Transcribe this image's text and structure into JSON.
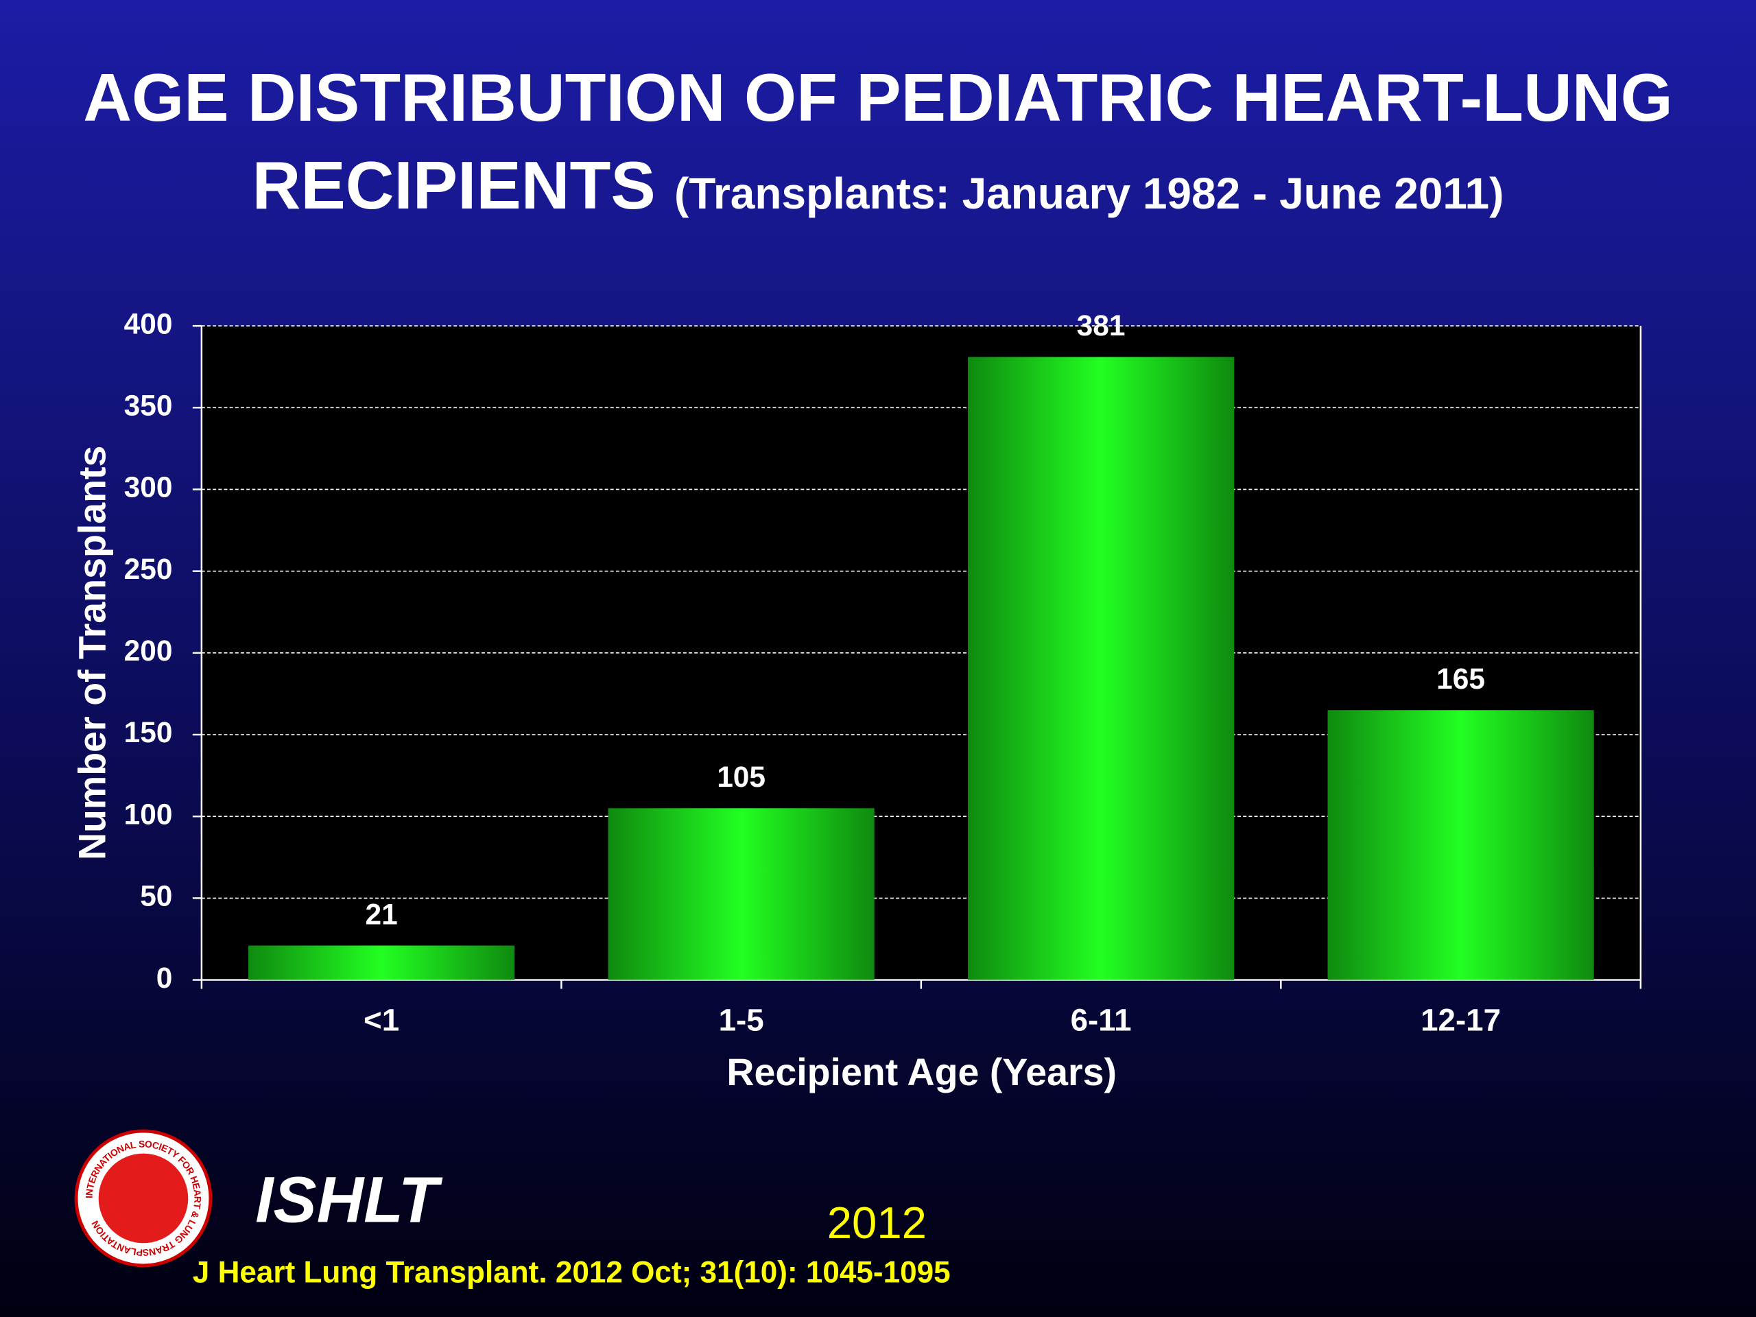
{
  "chart_data": {
    "type": "bar",
    "title": "AGE DISTRIBUTION OF PEDIATRIC HEART-LUNG RECIPIENTS",
    "subtitle": "(Transplants: January 1982 - June 2011)",
    "x_label": "Recipient Age (Years)",
    "y_label": "Number of Transplants",
    "categories": [
      "<1",
      "1-5",
      "6-11",
      "12-17"
    ],
    "values": [
      21,
      105,
      381,
      165
    ],
    "color": "#1ef51e",
    "ylim": [
      0,
      400
    ],
    "yticks": [
      0,
      50,
      100,
      150,
      200,
      250,
      300,
      350,
      400
    ],
    "grid": true
  },
  "footer": {
    "organization": "ISHLT",
    "year": "2012",
    "citation": "J Heart Lung Transplant.  2012 Oct; 31(10): 1045-1095",
    "logo_text": "INTERNATIONAL SOCIETY FOR HEART & LUNG TRANSPLANTATION"
  }
}
